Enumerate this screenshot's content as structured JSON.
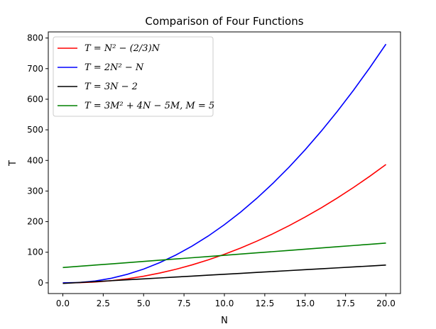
{
  "chart_data": {
    "type": "line",
    "title": "Comparison of Four Functions",
    "xlabel": "N",
    "ylabel": "T",
    "xlim": [
      -0.9,
      20.9
    ],
    "ylim": [
      -35,
      820
    ],
    "xticks": [
      0.0,
      2.5,
      5.0,
      7.5,
      10.0,
      12.5,
      15.0,
      17.5,
      20.0
    ],
    "xtick_labels": [
      "0.0",
      "2.5",
      "5.0",
      "7.5",
      "10.0",
      "12.5",
      "15.0",
      "17.5",
      "20.0"
    ],
    "yticks": [
      0,
      100,
      200,
      300,
      400,
      500,
      600,
      700,
      800
    ],
    "ytick_labels": [
      "0",
      "100",
      "200",
      "300",
      "400",
      "500",
      "600",
      "700",
      "800"
    ],
    "grid": false,
    "legend_position": "top-left",
    "x": [
      0,
      1,
      2,
      3,
      4,
      5,
      6,
      7,
      8,
      9,
      10,
      11,
      12,
      13,
      14,
      15,
      16,
      17,
      18,
      19,
      20
    ],
    "series": [
      {
        "name": "T = N² − (2/3)N",
        "color": "#ff0000",
        "values": [
          0,
          0.33,
          2.67,
          7,
          13.33,
          21.67,
          32,
          44.33,
          58.67,
          75,
          93.33,
          113.67,
          136,
          160.33,
          186.67,
          215,
          245.33,
          277.67,
          312,
          348.33,
          386.67
        ]
      },
      {
        "name": "T = 2N² − N",
        "color": "#0000ff",
        "values": [
          0,
          1,
          6,
          15,
          28,
          45,
          66,
          91,
          120,
          153,
          190,
          231,
          276,
          325,
          378,
          435,
          496,
          561,
          630,
          703,
          780
        ]
      },
      {
        "name": "T = 3N − 2",
        "color": "#000000",
        "values": [
          -2,
          1,
          4,
          7,
          10,
          13,
          16,
          19,
          22,
          25,
          28,
          31,
          34,
          37,
          40,
          43,
          46,
          49,
          52,
          55,
          58
        ]
      },
      {
        "name": "T = 3M² + 4N − 5M, M = 5",
        "color": "#008000",
        "values": [
          50,
          54,
          58,
          62,
          66,
          70,
          74,
          78,
          82,
          86,
          90,
          94,
          98,
          102,
          106,
          110,
          114,
          118,
          122,
          126,
          130
        ]
      }
    ]
  }
}
